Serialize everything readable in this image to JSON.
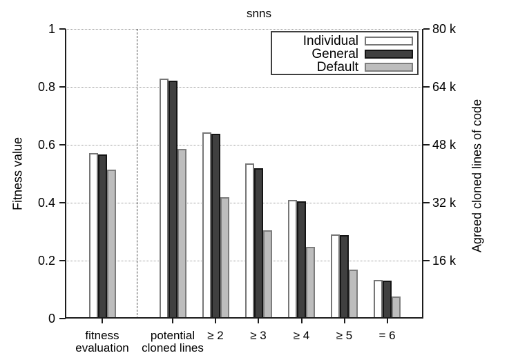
{
  "chart_data": {
    "type": "bar",
    "title": "snns",
    "ylabel_left": "Fitness value",
    "ylabel_right": "Agreed cloned lines of code",
    "ylim": [
      0,
      1
    ],
    "ylim_right": [
      0,
      80000
    ],
    "grid": "horizontal dotted lines every 0.2",
    "legend_position": "top-right inset box",
    "separator_after_category": 0,
    "categories": [
      "fitness evaluation",
      "potential cloned lines",
      "≥ 2",
      "≥ 3",
      "≥ 4",
      "≥ 5",
      "= 6"
    ],
    "category_lines": [
      [
        "fitness",
        "evaluation"
      ],
      [
        "potential",
        "cloned lines"
      ],
      [
        "≥ 2"
      ],
      [
        "≥ 3"
      ],
      [
        "≥ 4"
      ],
      [
        "≥ 5"
      ],
      [
        "= 6"
      ]
    ],
    "left_ticks": [
      {
        "label": "1",
        "value": 1
      },
      {
        "label": "0.8",
        "value": 0.8
      },
      {
        "label": "0.6",
        "value": 0.6
      },
      {
        "label": "0.4",
        "value": 0.4
      },
      {
        "label": "0.2",
        "value": 0.2
      },
      {
        "label": "0",
        "value": 0
      }
    ],
    "right_ticks": [
      {
        "label": "80 k",
        "value": 1
      },
      {
        "label": "64 k",
        "value": 0.8
      },
      {
        "label": "48 k",
        "value": 0.6
      },
      {
        "label": "32 k",
        "value": 0.4
      },
      {
        "label": "16 k",
        "value": 0.2
      }
    ],
    "grid_values": [
      1,
      0.8,
      0.6,
      0.4,
      0.2
    ],
    "series": [
      {
        "name": "Individual",
        "fill": "#ffffff",
        "border": "#767676",
        "values": [
          0.571,
          0.828,
          0.644,
          0.535,
          0.41,
          0.291,
          0.133
        ]
      },
      {
        "name": "General",
        "fill": "#404040",
        "border": "#141414",
        "values": [
          0.566,
          0.822,
          0.637,
          0.519,
          0.404,
          0.287,
          0.131
        ]
      },
      {
        "name": "Default",
        "fill": "#bdbdbd",
        "border": "#7d7d7d",
        "values": [
          0.515,
          0.586,
          0.42,
          0.305,
          0.247,
          0.17,
          0.076
        ]
      }
    ]
  }
}
